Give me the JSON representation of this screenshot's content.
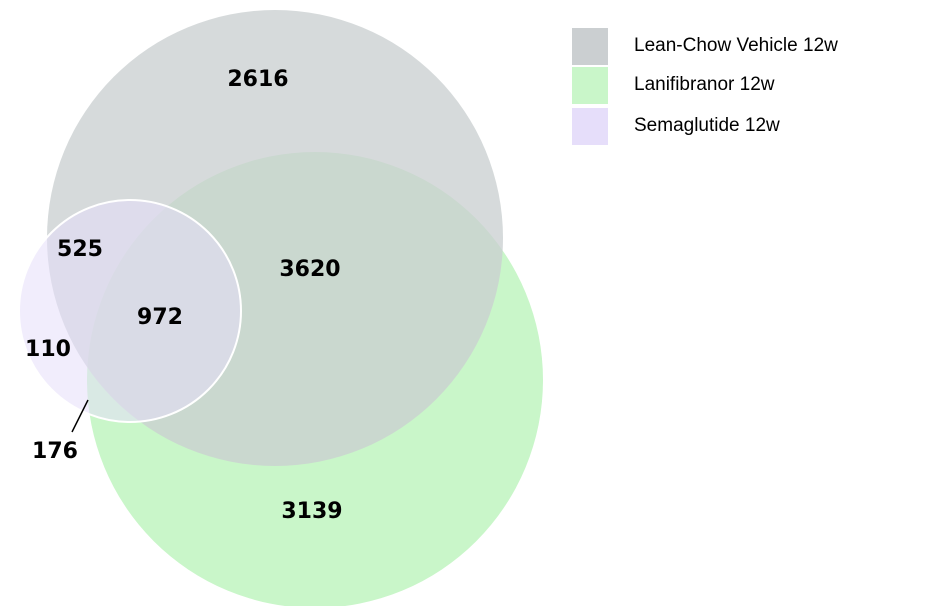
{
  "sets": [
    {
      "name": "Lean-Chow Vehicle 12w",
      "color": "#cbcfd1"
    },
    {
      "name": "Lanifibranor 12w",
      "color": "#c9f6c9"
    },
    {
      "name": "Semaglutide 12w",
      "color": "#e6defa"
    }
  ],
  "regions": [
    {
      "value": 2616
    },
    {
      "value": 525
    },
    {
      "value": 3620
    },
    {
      "value": 972
    },
    {
      "value": 110
    },
    {
      "value": 176
    },
    {
      "value": 3139
    }
  ]
}
